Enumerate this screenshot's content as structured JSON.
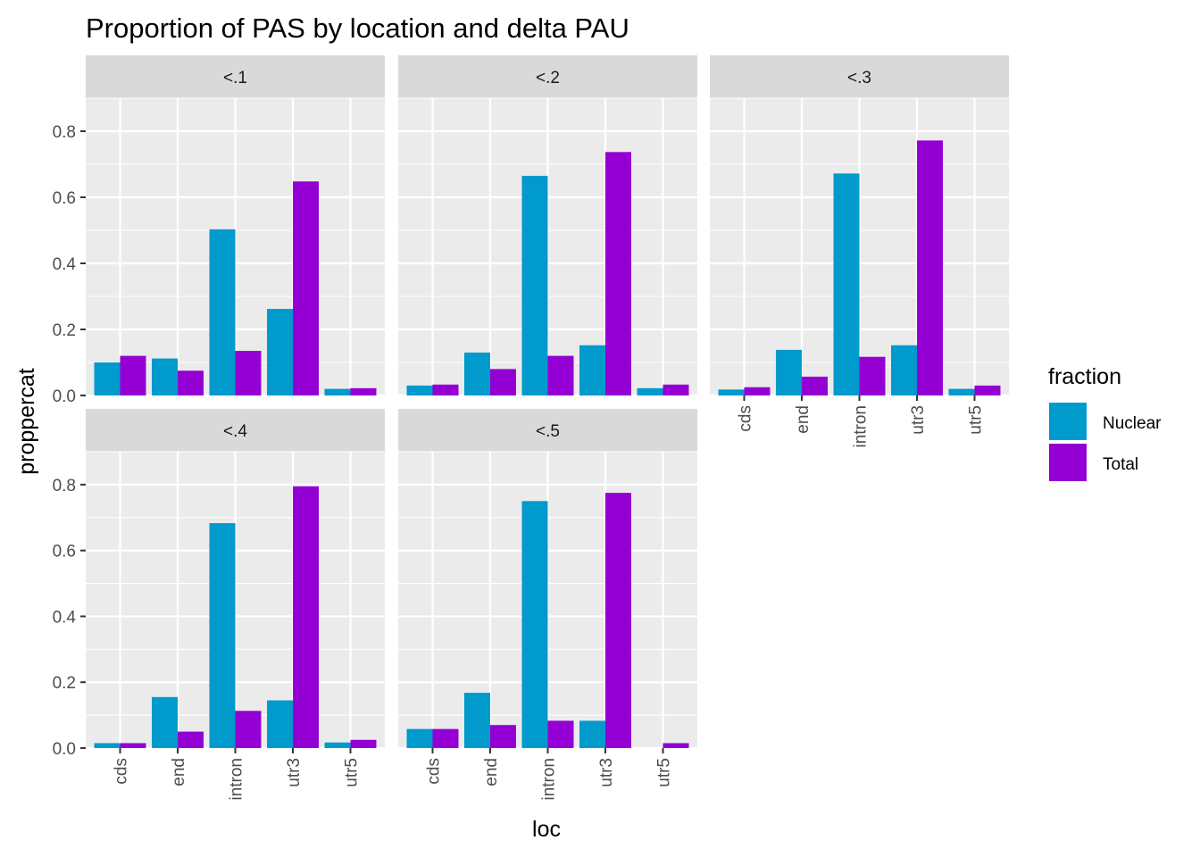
{
  "chart_data": {
    "type": "bar",
    "title": "Proportion of PAS by location and delta PAU",
    "xlabel": "loc",
    "ylabel": "proppercat",
    "categories": [
      "cds",
      "end",
      "intron",
      "utr3",
      "utr5"
    ],
    "ylim": [
      0,
      0.9
    ],
    "yticks": [
      0.0,
      0.2,
      0.4,
      0.6,
      0.8
    ],
    "ytick_labels": [
      "0.0",
      "0.2",
      "0.4",
      "0.6",
      "0.8"
    ],
    "grid": true,
    "legend": {
      "title": "fraction",
      "position": "right",
      "entries": [
        "Nuclear",
        "Total"
      ]
    },
    "colors": {
      "Nuclear": "#009ACD",
      "Total": "#9400D3"
    },
    "facets": [
      {
        "label": "<.1",
        "series": [
          {
            "name": "Nuclear",
            "values": [
              0.1,
              0.112,
              0.503,
              0.262,
              0.02
            ]
          },
          {
            "name": "Total",
            "values": [
              0.12,
              0.075,
              0.135,
              0.648,
              0.022
            ]
          }
        ]
      },
      {
        "label": "<.2",
        "series": [
          {
            "name": "Nuclear",
            "values": [
              0.03,
              0.13,
              0.665,
              0.152,
              0.022
            ]
          },
          {
            "name": "Total",
            "values": [
              0.033,
              0.08,
              0.12,
              0.737,
              0.033
            ]
          }
        ]
      },
      {
        "label": "<.3",
        "series": [
          {
            "name": "Nuclear",
            "values": [
              0.018,
              0.138,
              0.672,
              0.152,
              0.02
            ]
          },
          {
            "name": "Total",
            "values": [
              0.025,
              0.057,
              0.117,
              0.772,
              0.03
            ]
          }
        ]
      },
      {
        "label": "<.4",
        "series": [
          {
            "name": "Nuclear",
            "values": [
              0.015,
              0.155,
              0.683,
              0.145,
              0.017
            ]
          },
          {
            "name": "Total",
            "values": [
              0.015,
              0.05,
              0.113,
              0.795,
              0.025
            ]
          }
        ]
      },
      {
        "label": "<.5",
        "series": [
          {
            "name": "Nuclear",
            "values": [
              0.058,
              0.168,
              0.75,
              0.083,
              0.0
            ]
          },
          {
            "name": "Total",
            "values": [
              0.058,
              0.07,
              0.083,
              0.775,
              0.015
            ]
          }
        ]
      }
    ]
  }
}
